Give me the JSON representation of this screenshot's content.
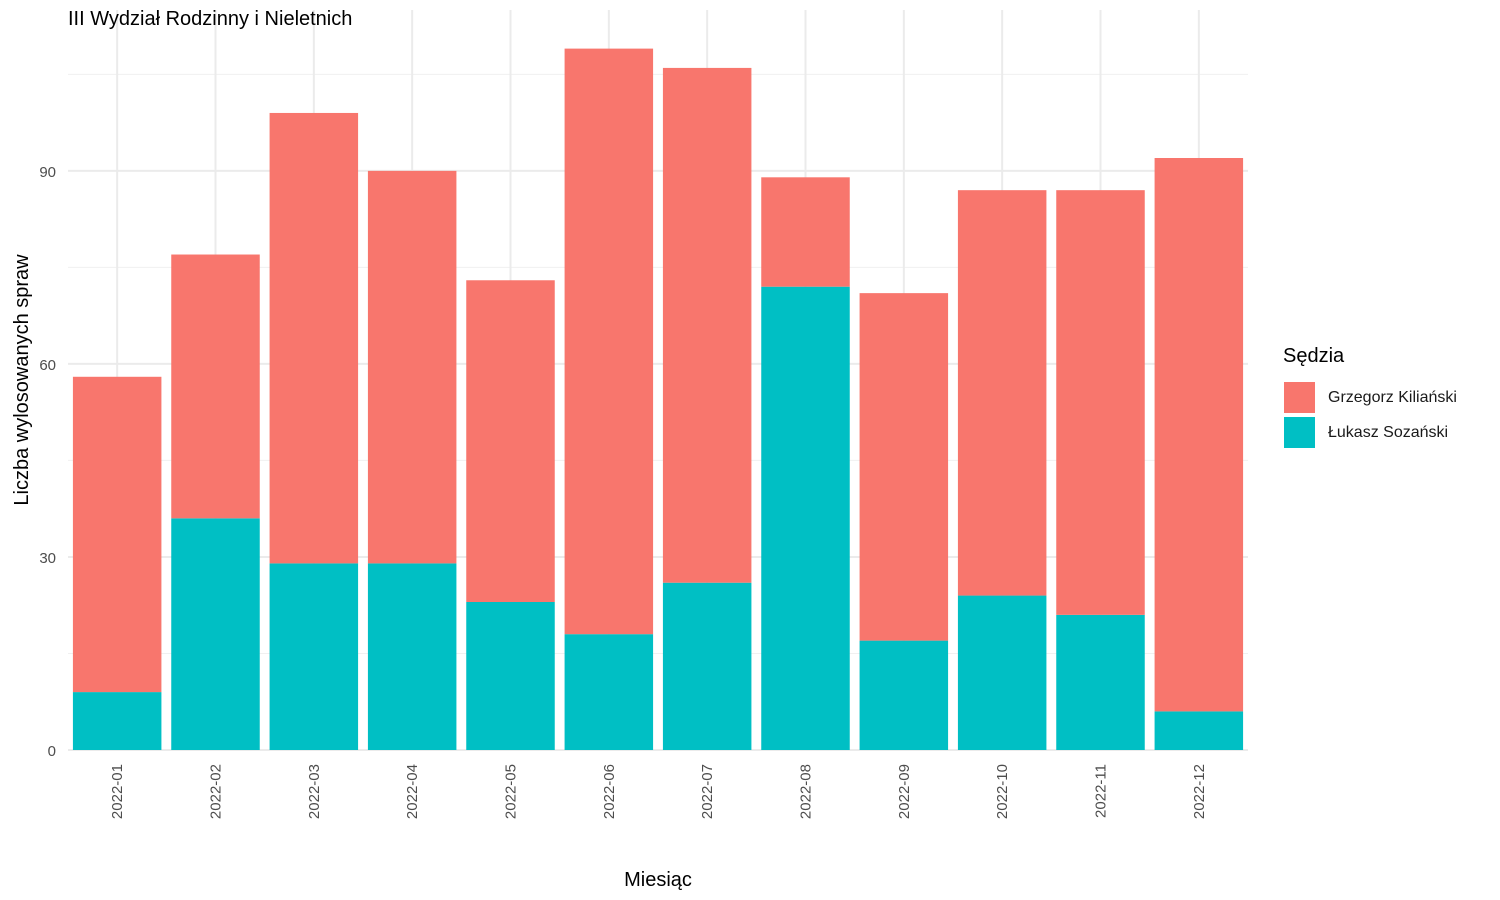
{
  "chart_data": {
    "type": "bar",
    "stacked": true,
    "title": "III Wydział Rodzinny i Nieletnich",
    "xlabel": "Miesiąc",
    "ylabel": "Liczba wylosowanych spraw",
    "ylim": [
      0,
      115
    ],
    "yticks": [
      0,
      30,
      60,
      90
    ],
    "grid": true,
    "legend": {
      "title": "Sędzia",
      "position": "right"
    },
    "categories": [
      "2022-01",
      "2022-02",
      "2022-03",
      "2022-04",
      "2022-05",
      "2022-06",
      "2022-07",
      "2022-08",
      "2022-09",
      "2022-10",
      "2022-11",
      "2022-12"
    ],
    "series": [
      {
        "name": "Grzegorz Kiliański",
        "color": "#F8766D",
        "values": [
          49,
          41,
          70,
          61,
          50,
          91,
          80,
          17,
          54,
          63,
          66,
          86
        ]
      },
      {
        "name": "Łukasz Sozański",
        "color": "#00BFC4",
        "values": [
          9,
          36,
          29,
          29,
          23,
          18,
          26,
          72,
          17,
          24,
          21,
          6
        ]
      }
    ]
  }
}
